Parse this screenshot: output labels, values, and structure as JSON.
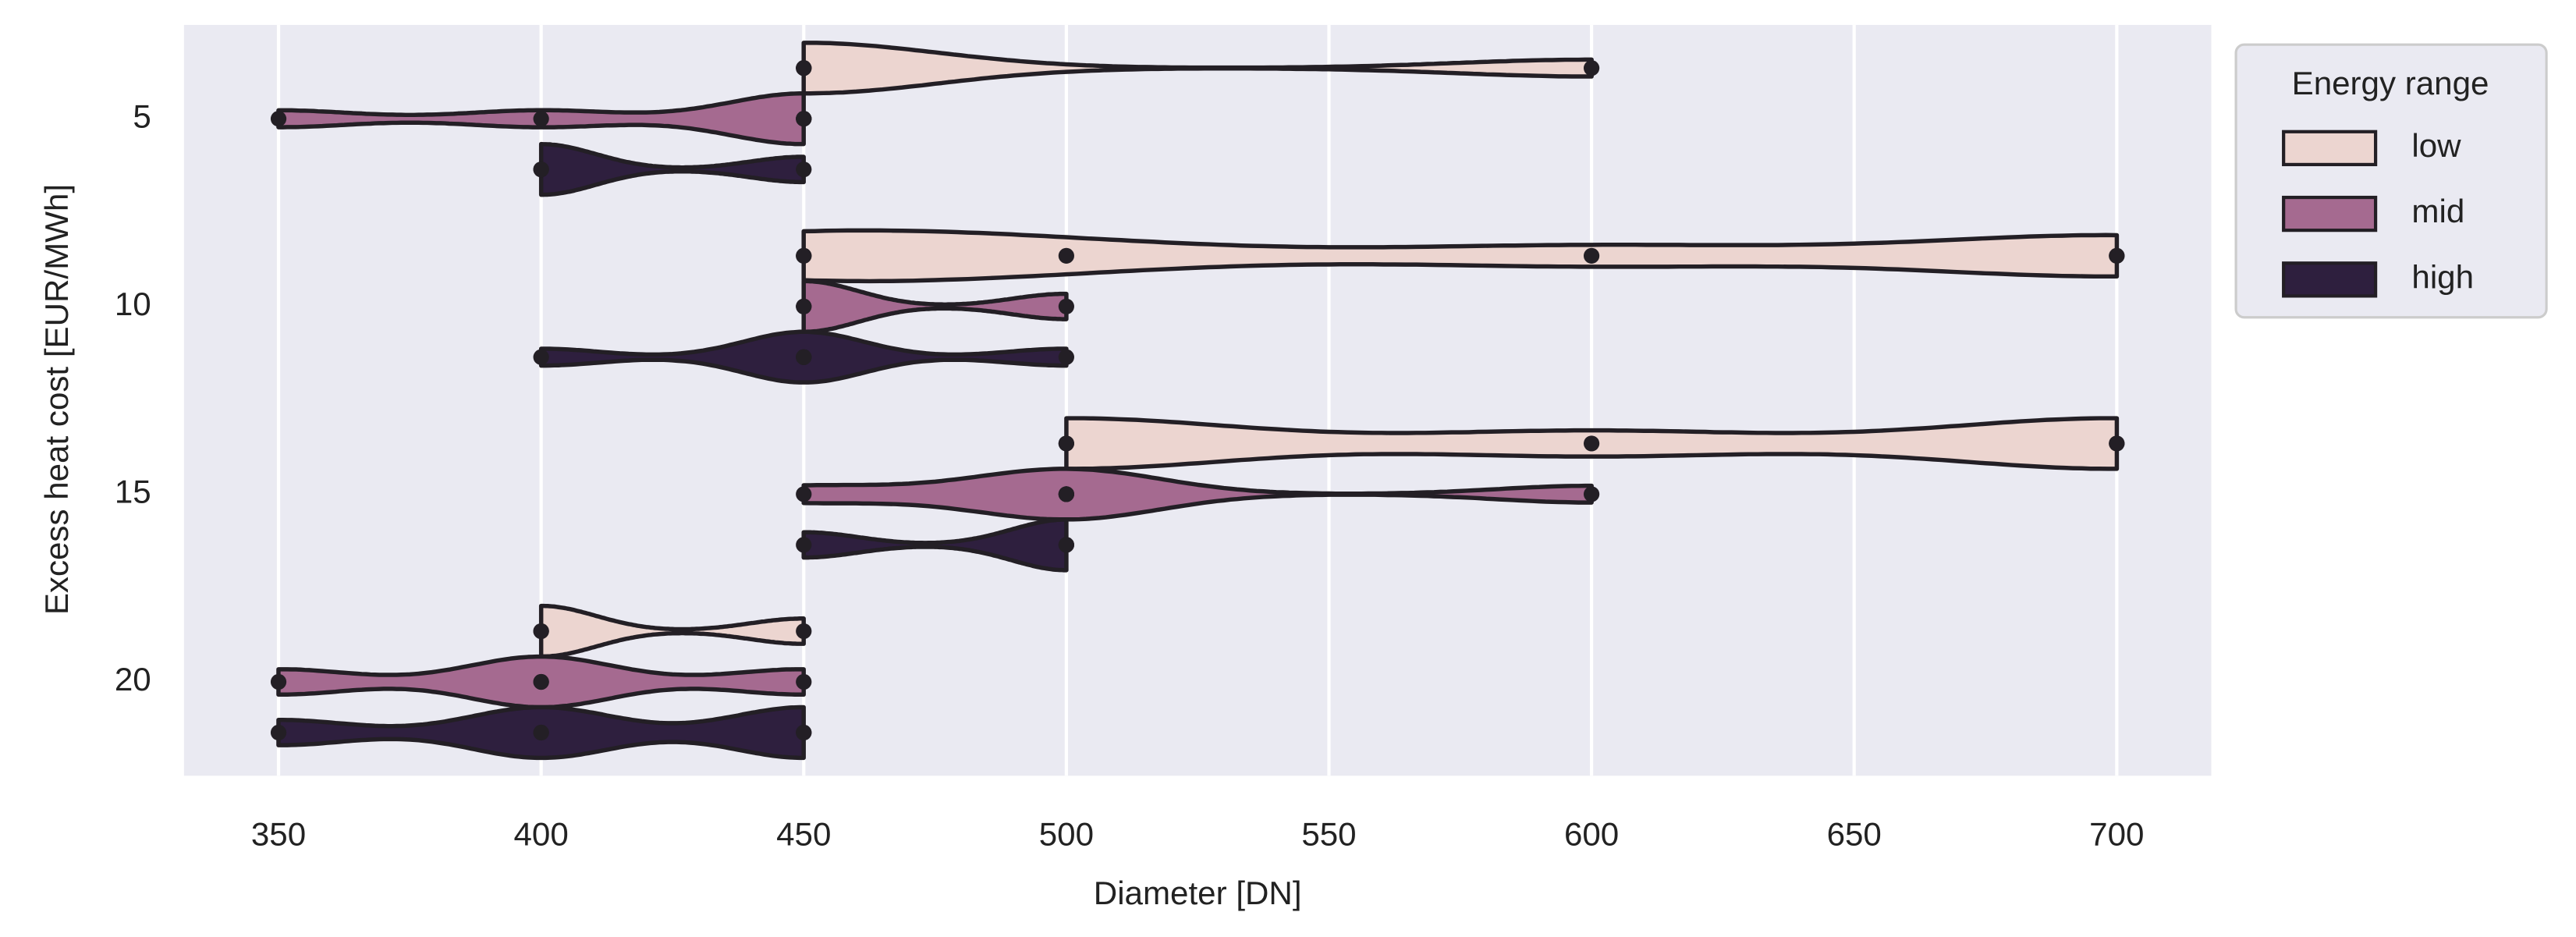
{
  "chart_data": {
    "type": "violin",
    "x_label": "Diameter [DN]",
    "y_label": "Excess heat cost [EUR/MWh]",
    "categories": [
      5,
      10,
      15,
      20
    ],
    "series": [
      {
        "name": "low",
        "color": "#ecd5d0",
        "values": [
          [
            450,
            450,
            450,
            600
          ],
          [
            450,
            450,
            500,
            600,
            700,
            700
          ],
          [
            500,
            500,
            600,
            700,
            700
          ],
          [
            400,
            400,
            450
          ]
        ]
      },
      {
        "name": "mid",
        "color": "#a56a90",
        "values": [
          [
            350,
            400,
            450,
            450,
            450
          ],
          [
            450,
            450,
            500
          ],
          [
            450,
            500,
            500,
            500,
            600
          ],
          [
            350,
            400,
            400,
            450
          ]
        ]
      },
      {
        "name": "high",
        "color": "#2e1f3e",
        "values": [
          [
            400,
            400,
            450
          ],
          [
            400,
            450,
            450,
            450,
            500
          ],
          [
            450,
            500,
            500
          ],
          [
            350,
            400,
            400,
            450,
            450
          ]
        ]
      }
    ],
    "xlim": [
      332,
      718
    ],
    "xticks": [
      350,
      400,
      450,
      500,
      550,
      600,
      650,
      700
    ],
    "grid": true,
    "legend_title": "Energy range",
    "legend": "outside upper right"
  }
}
